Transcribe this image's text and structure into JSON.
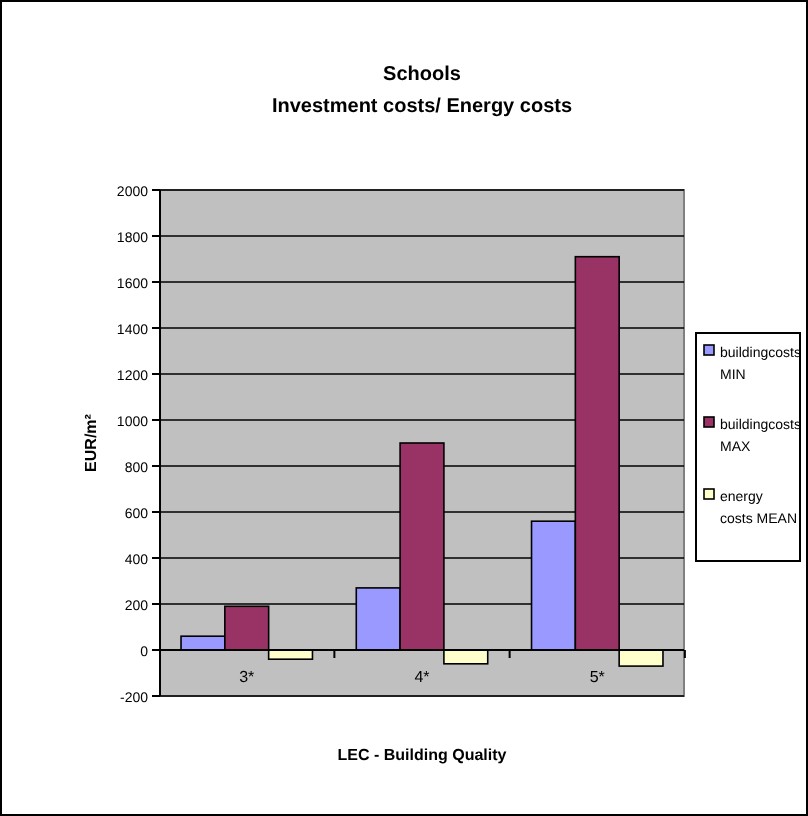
{
  "chart_data": {
    "type": "bar",
    "title": "Schools",
    "subtitle": "Investment costs/ Energy costs",
    "xlabel": "LEC - Building Quality",
    "ylabel": "EUR/m²",
    "categories": [
      "3*",
      "4*",
      "5*"
    ],
    "series": [
      {
        "name": "buildingcosts MIN",
        "color": "#9999ff",
        "values": [
          60,
          270,
          560
        ]
      },
      {
        "name": "buildingcosts MAX",
        "color": "#993366",
        "values": [
          190,
          900,
          1710
        ]
      },
      {
        "name": "energy costs MEAN",
        "color": "#ffffcc",
        "values": [
          -40,
          -60,
          -70
        ]
      }
    ],
    "ylim": [
      -200,
      2000
    ],
    "yticks": [
      -200,
      0,
      200,
      400,
      600,
      800,
      1000,
      1200,
      1400,
      1600,
      1800,
      2000
    ],
    "grid": "y",
    "legend": "right"
  }
}
